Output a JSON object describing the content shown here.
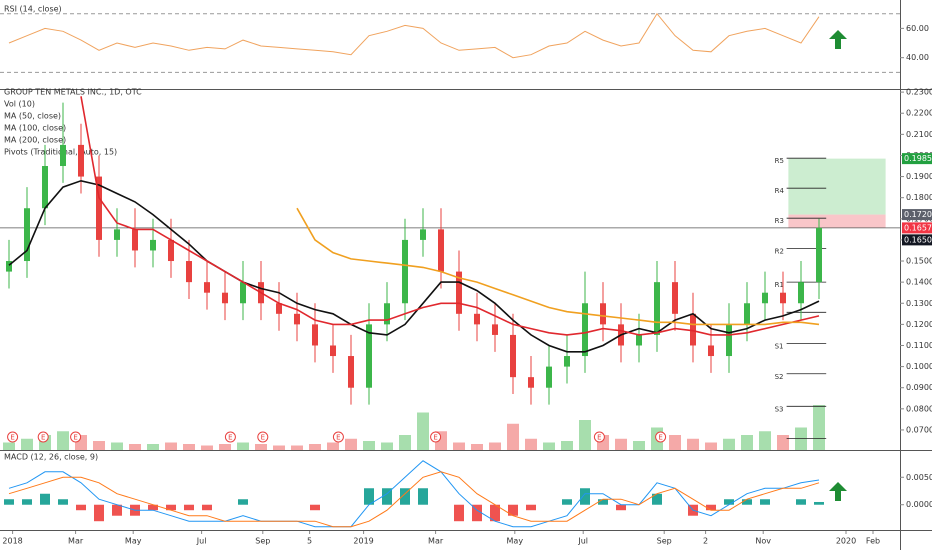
{
  "chart_data": [
    {
      "type": "line",
      "title": "RSI (14, close)",
      "x": [
        0,
        1,
        2,
        3,
        4,
        5,
        6,
        7,
        8,
        9,
        10,
        11,
        12,
        13,
        14,
        15,
        16,
        17,
        18,
        19,
        20,
        21,
        22,
        23,
        24,
        25,
        26,
        27,
        28,
        29,
        30,
        31,
        32,
        33,
        34,
        35,
        36,
        37,
        38,
        39,
        40,
        41,
        42,
        43,
        44,
        45
      ],
      "series": [
        {
          "color": "#f0a35e",
          "values": [
            50,
            55,
            60,
            58,
            52,
            45,
            50,
            47,
            50,
            48,
            45,
            47,
            46,
            52,
            48,
            47,
            46,
            45,
            44,
            42,
            55,
            58,
            62,
            60,
            50,
            45,
            46,
            47,
            40,
            42,
            48,
            50,
            58,
            52,
            48,
            50,
            70,
            55,
            45,
            44,
            55,
            58,
            60,
            55,
            50,
            68
          ]
        }
      ],
      "bands": [
        30,
        70
      ],
      "xlim": [
        -0.5,
        49.5
      ],
      "ylim": [
        19.3,
        78
      ],
      "yticks": [
        {
          "value": 40,
          "label": "40.00"
        },
        {
          "value": 60,
          "label": "60.00"
        }
      ]
    },
    {
      "type": "candlestick",
      "title": "GROUP TEN METALS INC., 1D, OTC",
      "x": [
        0,
        1,
        2,
        3,
        4,
        5,
        6,
        7,
        8,
        9,
        10,
        11,
        12,
        13,
        14,
        15,
        16,
        17,
        18,
        19,
        20,
        21,
        22,
        23,
        24,
        25,
        26,
        27,
        28,
        29,
        30,
        31,
        32,
        33,
        34,
        35,
        36,
        37,
        38,
        39,
        40,
        41,
        42,
        43,
        44,
        45
      ],
      "open": [
        0.145,
        0.15,
        0.175,
        0.195,
        0.205,
        0.19,
        0.16,
        0.165,
        0.155,
        0.16,
        0.15,
        0.14,
        0.135,
        0.13,
        0.14,
        0.13,
        0.125,
        0.12,
        0.11,
        0.105,
        0.09,
        0.12,
        0.13,
        0.16,
        0.165,
        0.145,
        0.125,
        0.12,
        0.115,
        0.095,
        0.09,
        0.1,
        0.105,
        0.13,
        0.12,
        0.11,
        0.115,
        0.14,
        0.125,
        0.11,
        0.105,
        0.12,
        0.13,
        0.135,
        0.13,
        0.14
      ],
      "high": [
        0.16,
        0.185,
        0.205,
        0.225,
        0.215,
        0.2,
        0.175,
        0.175,
        0.17,
        0.17,
        0.16,
        0.15,
        0.145,
        0.15,
        0.15,
        0.14,
        0.135,
        0.13,
        0.12,
        0.115,
        0.13,
        0.14,
        0.17,
        0.175,
        0.175,
        0.155,
        0.135,
        0.13,
        0.125,
        0.105,
        0.11,
        0.115,
        0.145,
        0.14,
        0.13,
        0.125,
        0.15,
        0.15,
        0.135,
        0.12,
        0.13,
        0.14,
        0.145,
        0.145,
        0.15,
        0.17
      ],
      "low": [
        0.137,
        0.142,
        0.167,
        0.187,
        0.182,
        0.152,
        0.152,
        0.147,
        0.147,
        0.142,
        0.132,
        0.127,
        0.122,
        0.122,
        0.122,
        0.117,
        0.112,
        0.102,
        0.097,
        0.082,
        0.082,
        0.112,
        0.122,
        0.152,
        0.137,
        0.117,
        0.112,
        0.107,
        0.087,
        0.082,
        0.082,
        0.092,
        0.097,
        0.112,
        0.102,
        0.102,
        0.107,
        0.117,
        0.102,
        0.097,
        0.097,
        0.112,
        0.122,
        0.122,
        0.122,
        0.132
      ],
      "close": [
        0.15,
        0.175,
        0.195,
        0.205,
        0.19,
        0.16,
        0.165,
        0.155,
        0.16,
        0.15,
        0.14,
        0.135,
        0.13,
        0.14,
        0.13,
        0.125,
        0.12,
        0.11,
        0.105,
        0.09,
        0.12,
        0.13,
        0.16,
        0.165,
        0.145,
        0.125,
        0.12,
        0.115,
        0.095,
        0.09,
        0.1,
        0.105,
        0.13,
        0.12,
        0.11,
        0.115,
        0.14,
        0.125,
        0.11,
        0.105,
        0.12,
        0.13,
        0.135,
        0.13,
        0.14,
        0.1657
      ],
      "up_color": "#3cb64a",
      "down_color": "#e8413f",
      "volume": {
        "name": "Vol (10)",
        "values": [
          10,
          15,
          20,
          25,
          20,
          12,
          10,
          8,
          8,
          10,
          8,
          6,
          8,
          10,
          8,
          6,
          6,
          8,
          10,
          15,
          12,
          10,
          20,
          50,
          25,
          10,
          8,
          10,
          35,
          15,
          10,
          12,
          40,
          20,
          15,
          12,
          30,
          20,
          15,
          10,
          15,
          20,
          25,
          20,
          30,
          60
        ]
      },
      "series": [
        {
          "name": "MA (50, close)",
          "color": "#111111",
          "values": [
            0.148,
            0.155,
            0.175,
            0.185,
            0.188,
            0.186,
            0.182,
            0.178,
            0.172,
            0.165,
            0.158,
            0.15,
            0.145,
            0.14,
            0.137,
            0.135,
            0.13,
            0.127,
            0.125,
            0.12,
            0.116,
            0.115,
            0.12,
            0.13,
            0.14,
            0.14,
            0.136,
            0.13,
            0.122,
            0.115,
            0.11,
            0.107,
            0.107,
            0.11,
            0.115,
            0.118,
            0.116,
            0.122,
            0.125,
            0.118,
            0.116,
            0.118,
            0.122,
            0.124,
            0.127,
            0.131
          ]
        },
        {
          "name": "MA (100, close)",
          "color": "#e0282e",
          "values": [
            null,
            null,
            null,
            null,
            0.228,
            0.18,
            0.168,
            0.165,
            0.165,
            0.16,
            0.155,
            0.15,
            0.145,
            0.14,
            0.135,
            0.13,
            0.127,
            0.122,
            0.12,
            0.12,
            0.122,
            0.122,
            0.125,
            0.128,
            0.13,
            0.13,
            0.128,
            0.124,
            0.12,
            0.118,
            0.116,
            0.115,
            0.116,
            0.118,
            0.117,
            0.115,
            0.116,
            0.118,
            0.117,
            0.115,
            0.115,
            0.116,
            0.118,
            0.12,
            0.122,
            0.124
          ]
        },
        {
          "name": "MA (200, close)",
          "color": "#f0a020",
          "values": [
            null,
            null,
            null,
            null,
            null,
            null,
            null,
            null,
            null,
            null,
            null,
            null,
            null,
            null,
            null,
            null,
            0.175,
            0.16,
            0.154,
            0.151,
            0.15,
            0.149,
            0.148,
            0.147,
            0.145,
            0.142,
            0.14,
            0.137,
            0.134,
            0.131,
            0.128,
            0.126,
            0.125,
            0.124,
            0.123,
            0.122,
            0.121,
            0.121,
            0.12,
            0.12,
            0.12,
            0.12,
            0.12,
            0.121,
            0.121,
            0.12
          ]
        }
      ],
      "pivots": {
        "name": "Pivots (Traditional, Auto, 15)",
        "x": [
          43.2,
          45.4
        ],
        "labels": [
          "R5",
          "R4",
          "R3",
          "R2",
          "R1",
          null,
          "S1",
          "S2",
          "S3",
          null
        ],
        "values": [
          0.1987,
          0.1845,
          0.1703,
          0.156,
          0.14,
          0.1257,
          0.111,
          0.0966,
          0.0812,
          0.066
        ]
      },
      "position": {
        "x": [
          43.3,
          48.7
        ],
        "target": 0.1985,
        "entry": 0.172,
        "stop": 0.1657
      },
      "price_tags": [
        {
          "value": 0.1985,
          "label": "0.1985",
          "color": "#22a040"
        },
        {
          "value": 0.172,
          "label": "0.1720",
          "color": "#5d606b"
        },
        {
          "value": 0.1657,
          "label": "0.1657",
          "color": "#f23645"
        },
        {
          "value": 0.165,
          "label": "0.1650",
          "color": "#131722"
        }
      ],
      "earnings": {
        "label": "E",
        "x": [
          0.2,
          1.9,
          3.7,
          12.3,
          14.1,
          18.3,
          23.7,
          32.8,
          36.2
        ]
      },
      "xlim": [
        -0.5,
        49.5
      ],
      "ylim": [
        0.0605,
        0.231
      ],
      "yticks": [
        {
          "value": 0.07,
          "label": "0.0700"
        },
        {
          "value": 0.08,
          "label": "0.0800"
        },
        {
          "value": 0.09,
          "label": "0.0900"
        },
        {
          "value": 0.1,
          "label": "0.1000"
        },
        {
          "value": 0.11,
          "label": "0.1100"
        },
        {
          "value": 0.12,
          "label": "0.1200"
        },
        {
          "value": 0.13,
          "label": "0.1300"
        },
        {
          "value": 0.14,
          "label": "0.1400"
        },
        {
          "value": 0.15,
          "label": "0.1500"
        },
        {
          "value": 0.16,
          "label": "0.1600"
        },
        {
          "value": 0.17,
          "label": "0.1700"
        },
        {
          "value": 0.18,
          "label": "0.1800"
        },
        {
          "value": 0.19,
          "label": "0.1900"
        },
        {
          "value": 0.2,
          "label": "0.2000"
        },
        {
          "value": 0.21,
          "label": "0.2100"
        },
        {
          "value": 0.22,
          "label": "0.2200"
        },
        {
          "value": 0.23,
          "label": "0.2300"
        }
      ],
      "xticks": [
        {
          "value": 0.2,
          "label": "2018"
        },
        {
          "value": 3.7,
          "label": "Mar"
        },
        {
          "value": 6.9,
          "label": "May"
        },
        {
          "value": 10.7,
          "label": "Jul"
        },
        {
          "value": 14.1,
          "label": "Sep"
        },
        {
          "value": 16.7,
          "label": "5"
        },
        {
          "value": 19.7,
          "label": "2019"
        },
        {
          "value": 23.7,
          "label": "Mar"
        },
        {
          "value": 28.1,
          "label": "May"
        },
        {
          "value": 31.9,
          "label": "Jul"
        },
        {
          "value": 36.4,
          "label": "Sep"
        },
        {
          "value": 38.7,
          "label": "2"
        },
        {
          "value": 41.9,
          "label": "Nov"
        },
        {
          "value": 46.5,
          "label": "2020"
        },
        {
          "value": 48.0,
          "label": "Feb"
        }
      ]
    },
    {
      "type": "macd",
      "title": "MACD (12, 26, close, 9)",
      "x": [
        0,
        1,
        2,
        3,
        4,
        5,
        6,
        7,
        8,
        9,
        10,
        11,
        12,
        13,
        14,
        15,
        16,
        17,
        18,
        19,
        20,
        21,
        22,
        23,
        24,
        25,
        26,
        27,
        28,
        29,
        30,
        31,
        32,
        33,
        34,
        35,
        36,
        37,
        38,
        39,
        40,
        41,
        42,
        43,
        44,
        45
      ],
      "series": [
        {
          "color": "#2196f3",
          "values": [
            0.003,
            0.004,
            0.006,
            0.006,
            0.004,
            0.001,
            0,
            -0.001,
            -0.001,
            -0.002,
            -0.003,
            -0.003,
            -0.003,
            -0.002,
            -0.003,
            -0.003,
            -0.003,
            -0.004,
            -0.004,
            -0.004,
            0,
            0.002,
            0.005,
            0.008,
            0.006,
            0.002,
            -0.001,
            -0.003,
            -0.004,
            -0.004,
            -0.003,
            -0.002,
            0.002,
            0.002,
            0,
            0,
            0.004,
            0.003,
            -0.001,
            -0.002,
            0,
            0.002,
            0.003,
            0.003,
            0.004,
            0.0045
          ]
        },
        {
          "color": "#ff7a1a",
          "values": [
            0.002,
            0.003,
            0.004,
            0.005,
            0.005,
            0.004,
            0.002,
            0.001,
            0,
            -0.001,
            -0.002,
            -0.002,
            -0.003,
            -0.003,
            -0.003,
            -0.003,
            -0.003,
            -0.003,
            -0.004,
            -0.004,
            -0.003,
            -0.001,
            0.002,
            0.005,
            0.006,
            0.005,
            0.002,
            0,
            -0.002,
            -0.003,
            -0.003,
            -0.003,
            -0.001,
            0.001,
            0.001,
            0,
            0.002,
            0.003,
            0.001,
            -0.001,
            -0.001,
            0.001,
            0.002,
            0.003,
            0.003,
            0.004
          ]
        }
      ],
      "histogram": {
        "up_color": "#26a69a",
        "down_color": "#ef5350",
        "values": [
          0.001,
          0.001,
          0.002,
          0.001,
          -0.001,
          -0.003,
          -0.002,
          -0.002,
          -0.001,
          -0.001,
          -0.001,
          -0.001,
          0,
          0.001,
          0,
          0,
          0,
          -0.001,
          0,
          0,
          0.003,
          0.003,
          0.003,
          0.003,
          0,
          -0.003,
          -0.003,
          -0.003,
          -0.002,
          -0.001,
          0,
          0.001,
          0.003,
          0.001,
          -0.001,
          0,
          0.002,
          0,
          -0.002,
          -0.001,
          0.001,
          0.001,
          0.001,
          0,
          0.001,
          0.0005
        ]
      },
      "xlim": [
        -0.5,
        49.5
      ],
      "ylim": [
        -0.0046,
        0.0096
      ],
      "yticks": [
        {
          "value": 0,
          "label": "0.0000"
        },
        {
          "value": 0.005,
          "label": "0.0050"
        }
      ]
    }
  ]
}
